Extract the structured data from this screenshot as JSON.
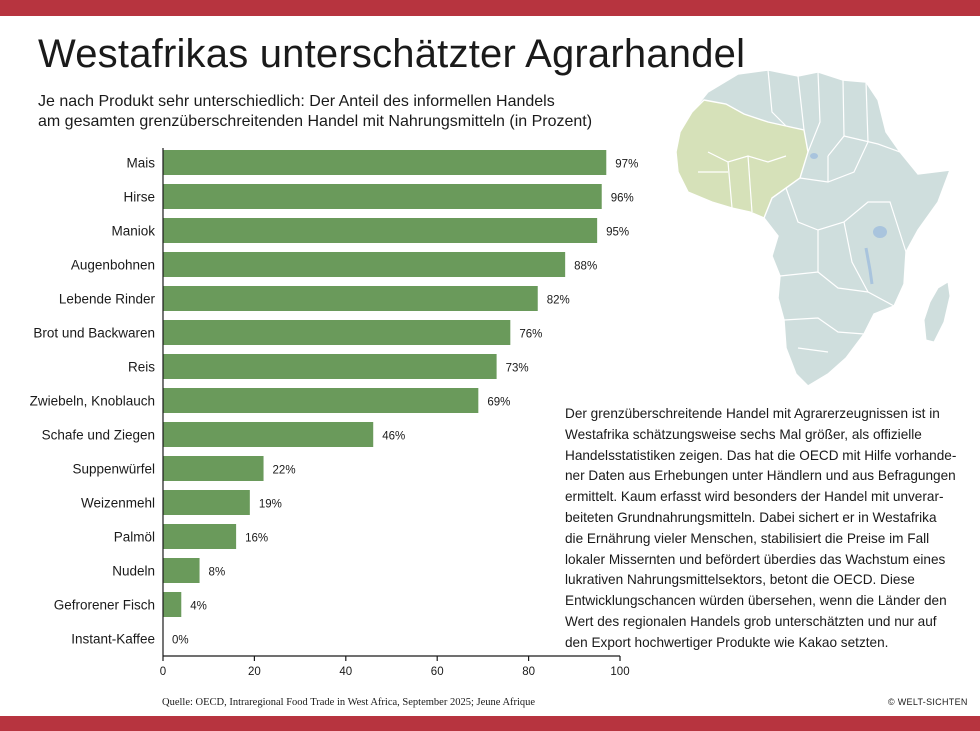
{
  "header": {
    "title": "Westafrikas unterschätzter Agrarhandel",
    "subtitle_line1": "Je nach Produkt sehr unterschiedlich: Der Anteil des informellen Handels",
    "subtitle_line2": "am gesamten grenzüberschreitenden Handel mit Nahrungsmitteln (in Prozent)"
  },
  "colors": {
    "band": "#b7343f",
    "bar": "#6a9a5b",
    "map_land": "#cfdedd",
    "map_west_africa": "#d6e1b9",
    "map_lake": "#a9c4dd"
  },
  "chart_data": {
    "type": "bar",
    "orientation": "horizontal",
    "categories": [
      "Mais",
      "Hirse",
      "Maniok",
      "Augenbohnen",
      "Lebende Rinder",
      "Brot und Backwaren",
      "Reis",
      "Zwiebeln, Knoblauch",
      "Schafe und Ziegen",
      "Suppenwürfel",
      "Weizenmehl",
      "Palmöl",
      "Nudeln",
      "Gefrorener Fisch",
      "Instant-Kaffee"
    ],
    "values": [
      97,
      96,
      95,
      88,
      82,
      76,
      73,
      69,
      46,
      22,
      19,
      16,
      8,
      4,
      0
    ],
    "value_labels": [
      "97%",
      "96%",
      "95%",
      "88%",
      "82%",
      "76%",
      "73%",
      "69%",
      "46%",
      "22%",
      "19%",
      "16%",
      "8%",
      "4%",
      "0%"
    ],
    "xlim": [
      0,
      100
    ],
    "xticks": [
      0,
      20,
      40,
      60,
      80,
      100
    ],
    "grid": false
  },
  "body_text": {
    "lines": [
      "Der grenzüberschreitende Handel mit Agrarerzeugnissen ist in",
      "Westafrika schätzungsweise sechs Mal größer, als offizielle",
      "Handelsstatistiken zeigen. Das hat die OECD mit Hilfe vorhande-",
      "ner Daten aus Erhebungen unter Händlern und aus Befragungen",
      "ermittelt. Kaum erfasst wird besonders der Handel mit unverar-",
      "beiteten Grundnahrungsmitteln. Dabei sichert er in Westafrika",
      "die Ernährung vieler Menschen, stabilisiert die Preise im Fall",
      "lokaler Missernten und befördert überdies das Wachstum eines",
      "lukrativen Nahrungsmittelsektors, betont die OECD. Diese",
      "Entwicklungschancen würden übersehen, wenn die Länder den",
      "Wert des regionalen Handels grob unterschätzten und nur auf",
      "den Export hochwertiger Produkte wie Kakao setzten."
    ]
  },
  "footer": {
    "source": "Quelle: OECD, Intraregional Food Trade in West Africa, September 2025; Jeune Afrique",
    "copyright": "© WELT-SICHTEN"
  }
}
